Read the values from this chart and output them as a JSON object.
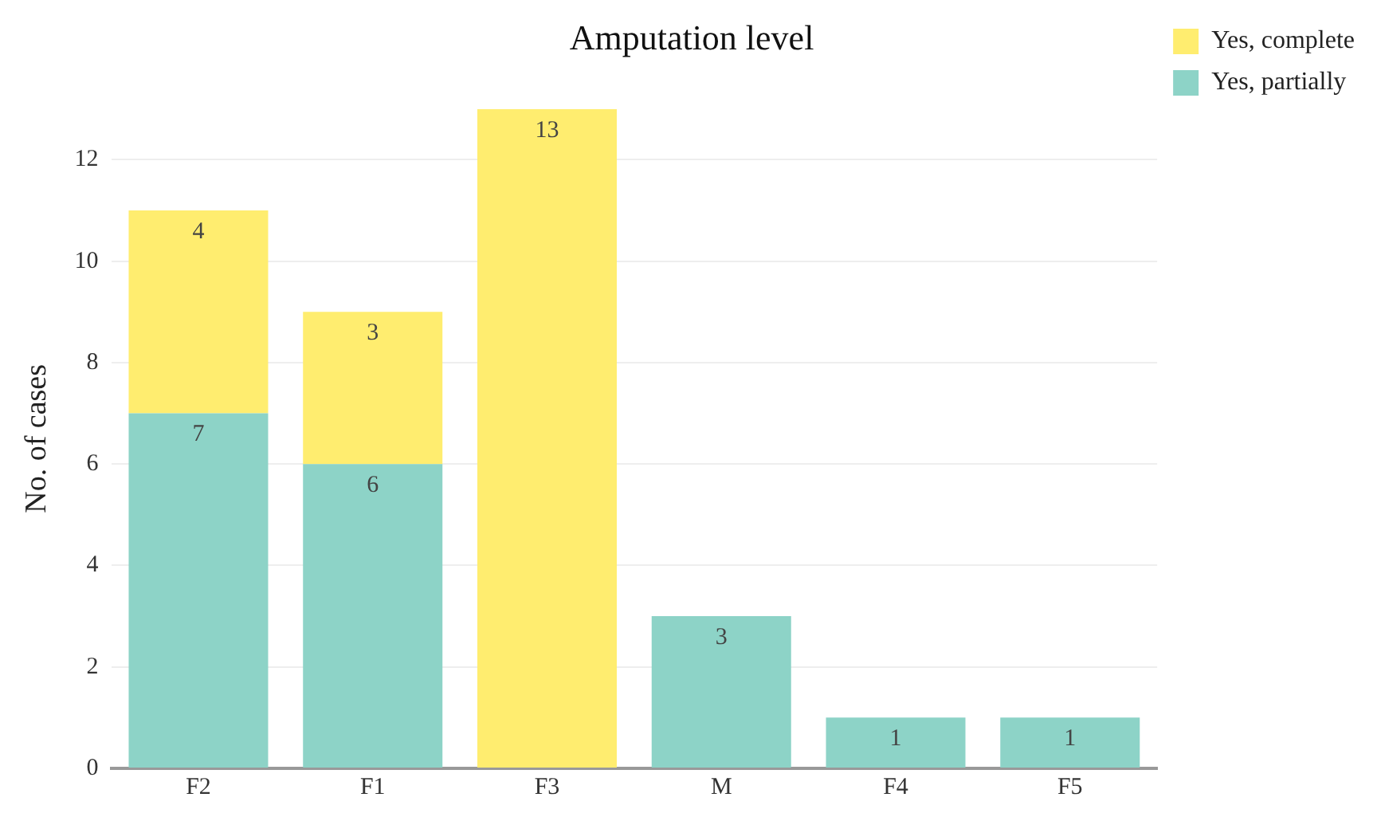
{
  "chart_data": {
    "type": "bar",
    "title": "Amputation level",
    "ylabel": "No. of cases",
    "categories": [
      "F2",
      "F1",
      "F3",
      "M",
      "F4",
      "F5"
    ],
    "series": [
      {
        "name": "Yes, partially",
        "color": "#8dd3c7",
        "values": [
          7,
          6,
          null,
          3,
          1,
          1
        ]
      },
      {
        "name": "Yes, complete",
        "color": "#ffed6f",
        "values": [
          4,
          3,
          13,
          null,
          null,
          null
        ]
      }
    ],
    "stacked": true,
    "ylim": [
      0,
      13
    ],
    "yticks": [
      0,
      2,
      4,
      6,
      8,
      10,
      12
    ],
    "grid": "y",
    "legend": "top right",
    "data_labels": true
  }
}
